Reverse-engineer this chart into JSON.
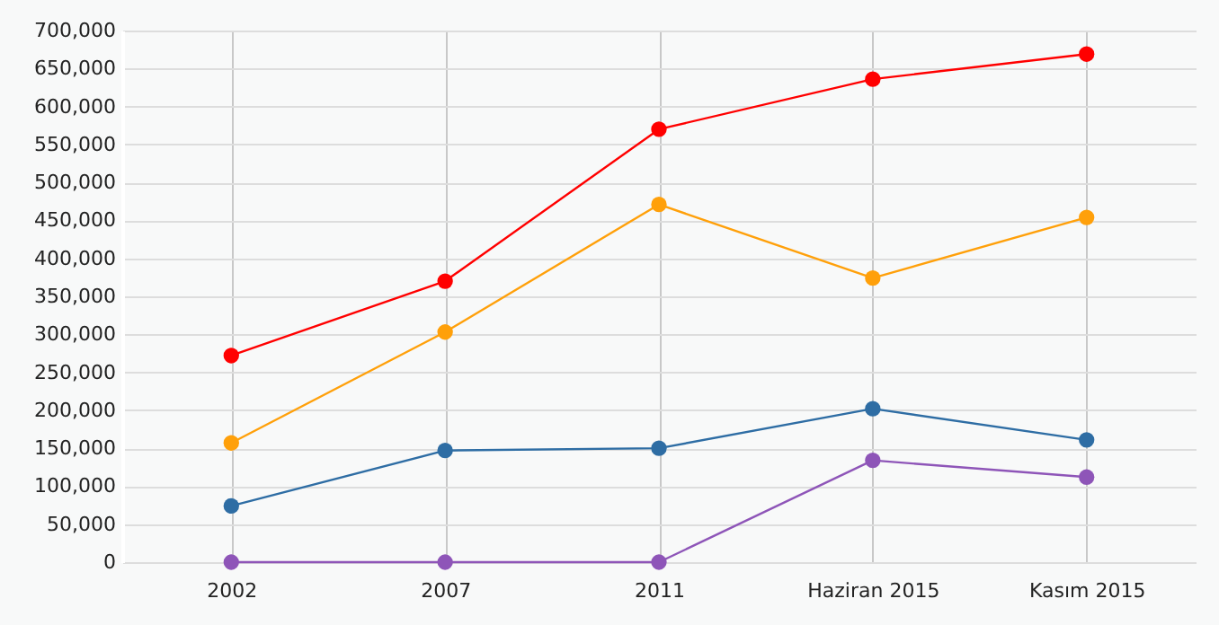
{
  "chart_data": {
    "type": "line",
    "categories": [
      "2002",
      "2007",
      "2011",
      "Haziran 2015",
      "Kasım 2015"
    ],
    "series": [
      {
        "color": "#ff0000",
        "values": [
          272000,
          370000,
          570000,
          636000,
          669000
        ]
      },
      {
        "color": "#ffa00a",
        "values": [
          157000,
          303000,
          471000,
          374000,
          454000
        ]
      },
      {
        "color": "#2e6da4",
        "values": [
          74000,
          147000,
          150000,
          202000,
          161000
        ]
      },
      {
        "color": "#8e55b8",
        "values": [
          0,
          0,
          0,
          134000,
          112000
        ]
      }
    ],
    "ylim": [
      0,
      700000
    ],
    "yticks": [
      0,
      {
        "value": 50000,
        "label": "50,000"
      },
      {
        "value": 100000,
        "label": "100,000"
      },
      {
        "value": 150000,
        "label": "150,000"
      },
      {
        "value": 200000,
        "label": "200,000"
      },
      {
        "value": 250000,
        "label": "250,000"
      },
      {
        "value": 300000,
        "label": "300,000"
      },
      {
        "value": 350000,
        "label": "350,000"
      },
      {
        "value": 400000,
        "label": "400,000"
      },
      {
        "value": 450000,
        "label": "450,000"
      },
      {
        "value": 500000,
        "label": "500,000"
      },
      {
        "value": 550000,
        "label": "550,000"
      },
      {
        "value": 600000,
        "label": "600,000"
      },
      {
        "value": 650000,
        "label": "650,000"
      },
      {
        "value": 700000,
        "label": "700,000"
      }
    ],
    "grid": true,
    "marker": "circle",
    "line_style": "solid"
  }
}
